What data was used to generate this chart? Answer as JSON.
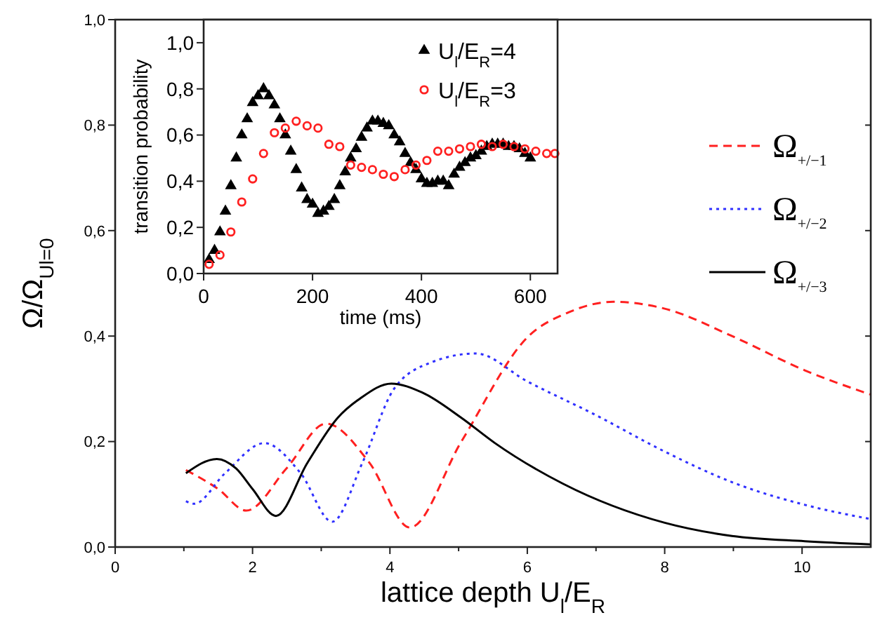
{
  "chart_data": [
    {
      "type": "line",
      "xlabel": "lattice depth U$_{l}$/E$_{R}$",
      "ylabel": "Ω/Ω$_{Ul=0}$",
      "xlim": [
        0,
        11
      ],
      "ylim": [
        0,
        1
      ],
      "xticks": [
        0,
        {
          "value": 1,
          "label": null
        },
        2,
        {
          "value": 3,
          "label": null
        },
        4,
        {
          "value": 5,
          "label": null
        },
        6,
        {
          "value": 7,
          "label": null
        },
        8,
        {
          "value": 9,
          "label": null
        },
        10
      ],
      "yticks": [
        {
          "value": 0,
          "label": "0,0"
        },
        {
          "value": 0.2,
          "label": "0,2"
        },
        {
          "value": 0.4,
          "label": "0,4"
        },
        {
          "value": 0.6,
          "label": "0,6"
        },
        {
          "value": 0.8,
          "label": "0,8"
        },
        {
          "value": 1,
          "label": "1,0"
        }
      ],
      "legend": "right",
      "grid": false,
      "series": [
        {
          "name": "Ω$_{+/−1}$",
          "color": "#ff2020",
          "line_style": "dashed",
          "x": [
            1.03,
            1.5,
            1.91,
            2.5,
            3.07,
            3.7,
            4.29,
            5.04,
            6.02,
            6.6,
            7.25,
            8.0,
            8.98,
            10.04,
            11.0
          ],
          "values": [
            0.146,
            0.11,
            0.069,
            0.15,
            0.234,
            0.16,
            0.037,
            0.2,
            0.4,
            0.445,
            0.465,
            0.452,
            0.4,
            0.335,
            0.289
          ]
        },
        {
          "name": "Ω$_{+/−2}$",
          "color": "#3030ff",
          "line_style": "dotted",
          "x": [
            1.03,
            1.15,
            1.6,
            2.17,
            2.7,
            3.16,
            3.6,
            4.06,
            4.6,
            5.25,
            6.0,
            7.0,
            8.0,
            9.0,
            10.04,
            11.0
          ],
          "values": [
            0.087,
            0.082,
            0.14,
            0.197,
            0.14,
            0.048,
            0.16,
            0.3,
            0.35,
            0.367,
            0.314,
            0.25,
            0.181,
            0.122,
            0.08,
            0.053
          ]
        },
        {
          "name": "Ω$_{+/−3}$",
          "color": "#000000",
          "line_style": "solid",
          "x": [
            1.03,
            1.48,
            1.76,
            2.0,
            2.34,
            2.8,
            3.24,
            3.57,
            4.02,
            4.47,
            5.04,
            5.53,
            6.52,
            8.0,
            8.98,
            10.04,
            11.0
          ],
          "values": [
            0.14,
            0.167,
            0.149,
            0.11,
            0.059,
            0.16,
            0.245,
            0.282,
            0.31,
            0.293,
            0.245,
            0.197,
            0.12,
            0.046,
            0.021,
            0.011,
            0.005
          ]
        }
      ]
    },
    {
      "type": "scatter",
      "xlabel": "time (ms)",
      "ylabel": "transition probability",
      "xlim": [
        0,
        650
      ],
      "ylim": [
        0,
        1.1
      ],
      "xticks": [
        0,
        200,
        400,
        600
      ],
      "yticks": [
        {
          "value": 0,
          "label": "0,0"
        },
        {
          "value": 0.2,
          "label": "0,2"
        },
        {
          "value": 0.4,
          "label": "0,4"
        },
        {
          "value": 0.6,
          "label": "0,6"
        },
        {
          "value": 0.8,
          "label": "0,8"
        },
        {
          "value": 1,
          "label": "1,0"
        }
      ],
      "legend": "top right",
      "grid": false,
      "series": [
        {
          "name": "U$_{l}$/E$_{R}$=4",
          "color": "#000000",
          "marker": "triangle",
          "x": [
            10,
            20,
            30,
            40,
            50,
            60,
            70,
            80,
            90,
            100,
            110,
            120,
            130,
            140,
            150,
            160,
            170,
            180,
            190,
            200,
            210,
            220,
            230,
            240,
            250,
            260,
            270,
            280,
            290,
            300,
            310,
            320,
            330,
            340,
            350,
            360,
            370,
            380,
            390,
            400,
            410,
            420,
            430,
            440,
            450,
            460,
            470,
            480,
            490,
            500,
            510,
            520,
            530,
            540,
            550,
            560,
            570,
            580,
            590,
            600
          ],
          "values": [
            0.06,
            0.1,
            0.18,
            0.27,
            0.38,
            0.5,
            0.6,
            0.67,
            0.74,
            0.77,
            0.8,
            0.77,
            0.73,
            0.67,
            0.6,
            0.53,
            0.45,
            0.37,
            0.32,
            0.3,
            0.26,
            0.27,
            0.29,
            0.32,
            0.38,
            0.44,
            0.5,
            0.54,
            0.59,
            0.63,
            0.66,
            0.66,
            0.65,
            0.64,
            0.6,
            0.57,
            0.52,
            0.48,
            0.45,
            0.41,
            0.39,
            0.39,
            0.4,
            0.4,
            0.38,
            0.43,
            0.46,
            0.48,
            0.5,
            0.51,
            0.53,
            0.55,
            0.56,
            0.56,
            0.56,
            0.55,
            0.55,
            0.54,
            0.52,
            0.5
          ]
        },
        {
          "name": "U$_{l}$/E$_{R}$=3",
          "color": "#ff2020",
          "marker": "circle",
          "x": [
            10,
            30,
            50,
            70,
            90,
            110,
            130,
            150,
            170,
            190,
            210,
            230,
            250,
            270,
            290,
            310,
            330,
            350,
            370,
            390,
            410,
            430,
            450,
            470,
            490,
            510,
            530,
            550,
            570,
            590,
            610,
            630,
            645
          ],
          "values": [
            0.04,
            0.08,
            0.18,
            0.31,
            0.41,
            0.52,
            0.61,
            0.63,
            0.66,
            0.64,
            0.63,
            0.56,
            0.55,
            0.47,
            0.46,
            0.45,
            0.43,
            0.42,
            0.45,
            0.47,
            0.49,
            0.53,
            0.53,
            0.54,
            0.55,
            0.56,
            0.55,
            0.56,
            0.55,
            0.54,
            0.53,
            0.52,
            0.52
          ]
        }
      ]
    }
  ]
}
